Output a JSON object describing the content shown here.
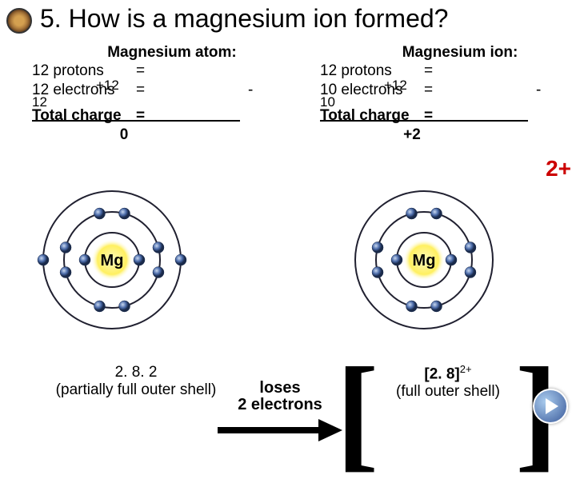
{
  "title": "5. How is a magnesium ion formed?",
  "left": {
    "heading": "Magnesium atom:",
    "protons_label": "12 protons",
    "protons_val": "+12",
    "electrons_label": "12 electrons",
    "electrons_small": "12",
    "total_label": "Total charge",
    "result": "0",
    "eq": "=",
    "minus": "-"
  },
  "right": {
    "heading": "Magnesium ion:",
    "protons_label": "12 protons",
    "protons_val": "+12",
    "electrons_label": "10 electrons",
    "electrons_small": "10",
    "total_label": "Total charge",
    "result": "+2",
    "eq": "=",
    "minus": "-"
  },
  "charge_big": "2+",
  "loses_l1": "loses",
  "loses_l2": "2 electrons",
  "bracket_l": "[",
  "bracket_r": "]",
  "caption_left_l1": "2. 8. 2",
  "caption_left_l2": "(partially full outer shell)",
  "caption_right_l1_a": "[2. 8]",
  "caption_right_l1_b": "2+",
  "caption_right_l2": "(full outer shell)",
  "atom": {
    "nucleus_label": "Mg",
    "nucleus_fill": "#fff9c0",
    "nucleus_glow": "#fff060",
    "ring_stroke": "#202030",
    "electron_fill": "#4a6aa8",
    "electron_stroke": "#1a2a4a",
    "electron_hl": "#c8d8f0",
    "bg": "#ffffff",
    "ring_radii": [
      34,
      60,
      86
    ],
    "left_shells": [
      2,
      8,
      2
    ],
    "right_shells": [
      2,
      8,
      0
    ]
  },
  "arrow_color": "#000000"
}
